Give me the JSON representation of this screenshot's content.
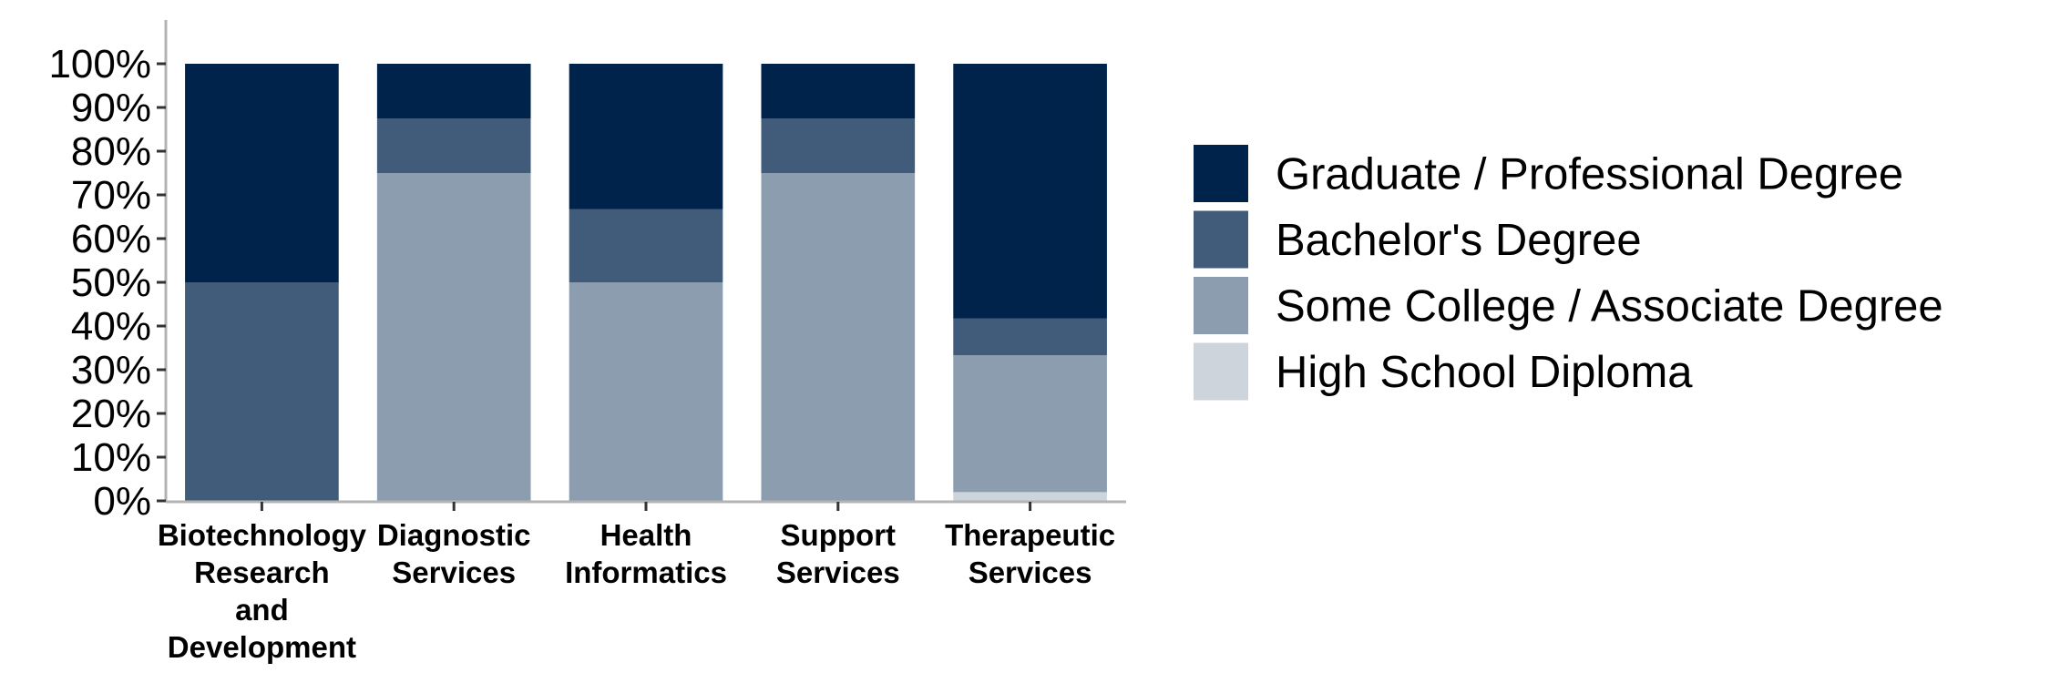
{
  "chart_data": {
    "type": "bar",
    "stacked": true,
    "title": "",
    "xlabel": "",
    "ylabel": "",
    "ylim": [
      0,
      1
    ],
    "y_ticks": [
      "0%",
      "10%",
      "20%",
      "30%",
      "40%",
      "50%",
      "60%",
      "70%",
      "80%",
      "90%",
      "100%"
    ],
    "grid": false,
    "legend_position": "right",
    "categories": [
      [
        "Biotechnology",
        "Research",
        "and",
        "Development"
      ],
      [
        "Diagnostic",
        "Services"
      ],
      [
        "Health",
        "Informatics"
      ],
      [
        "Support",
        "Services"
      ],
      [
        "Therapeutic",
        "Services"
      ]
    ],
    "series": [
      {
        "name": "High School Diploma",
        "color": "#cdd4dc",
        "values": [
          0.0,
          0.0,
          0.0,
          0.0,
          0.02
        ]
      },
      {
        "name": "Some College / Associate Degree",
        "color": "#8c9db0",
        "values": [
          0.0,
          0.75,
          0.5,
          0.75,
          0.313
        ]
      },
      {
        "name": "Bachelor's Degree",
        "color": "#415b7a",
        "values": [
          0.5,
          0.125,
          0.167,
          0.125,
          0.084
        ]
      },
      {
        "name": "Graduate / Professional Degree",
        "color": "#00234b",
        "values": [
          0.5,
          0.125,
          0.333,
          0.125,
          0.583
        ]
      }
    ],
    "legend_order": [
      "Graduate / Professional Degree",
      "Bachelor's Degree",
      "Some College / Associate Degree",
      "High School Diploma"
    ]
  }
}
